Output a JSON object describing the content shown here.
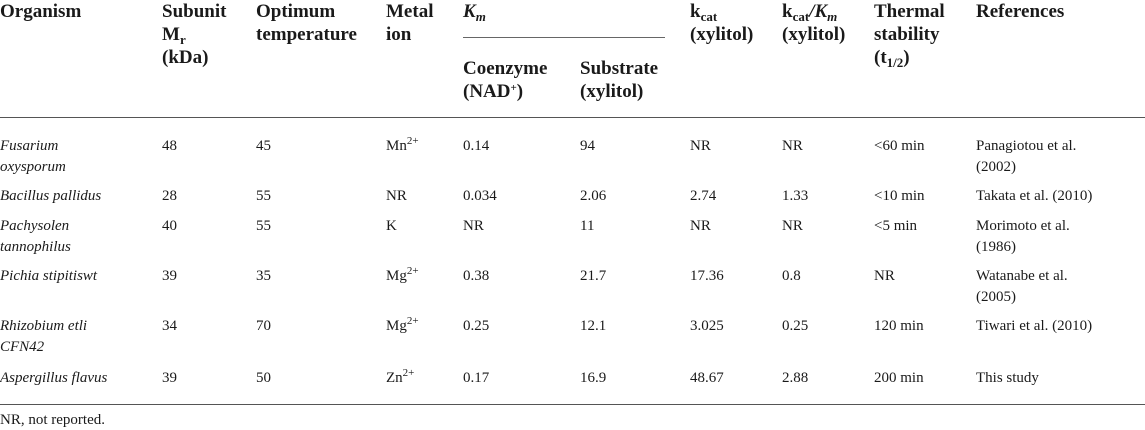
{
  "header": {
    "organism": "Organism",
    "subunit_1": "Subunit",
    "subunit_2": "M",
    "subunit_2_sub": "r",
    "subunit_3": "(kDa)",
    "optimum_1": "Optimum",
    "optimum_2": "temperature",
    "metal_1": "Metal",
    "metal_2": "ion",
    "km": "K",
    "km_sub": "m",
    "coenzyme_1": "Coenzyme",
    "coenzyme_2": "(NAD",
    "coenzyme_2_sup": "+",
    "coenzyme_2_end": ")",
    "substrate_1": "Substrate",
    "substrate_2": "(xylitol)",
    "kcat_1": "k",
    "kcat_1_sub": "cat",
    "kcat_2": "(xylitol)",
    "kcatkm_1a": "k",
    "kcatkm_1_sub": "cat",
    "kcatkm_1b": "/K",
    "kcatkm_1_sub2": "m",
    "kcatkm_2": "(xylitol)",
    "thermal_1": "Thermal",
    "thermal_2": "stability",
    "thermal_3a": "(t",
    "thermal_3_sub": "1/2",
    "thermal_3b": ")",
    "references": "References"
  },
  "rows": [
    {
      "organism": [
        "Fusarium",
        "oxysporum"
      ],
      "mr": "48",
      "temp": "45",
      "metal": "Mn",
      "metal_sup": "2+",
      "coenzyme": "0.14",
      "substrate": "94",
      "kcat": "NR",
      "kcatkm": "NR",
      "thermal": "<60 min",
      "ref": [
        "Panagiotou et al.",
        "(2002)"
      ]
    },
    {
      "organism": [
        "Bacillus pallidus"
      ],
      "mr": "28",
      "temp": "55",
      "metal": "NR",
      "metal_sup": "",
      "coenzyme": "0.034",
      "substrate": "2.06",
      "kcat": "2.74",
      "kcatkm": "1.33",
      "thermal": "<10 min",
      "ref": [
        "Takata et al. (2010)"
      ]
    },
    {
      "organism": [
        "Pachysolen",
        "tannophilus"
      ],
      "mr": "40",
      "temp": "55",
      "metal": "K",
      "metal_sup": "",
      "coenzyme": "NR",
      "substrate": "11",
      "kcat": "NR",
      "kcatkm": "NR",
      "thermal": "<5 min",
      "ref": [
        "Morimoto et al.",
        "(1986)"
      ]
    },
    {
      "organism": [
        "Pichia stipitiswt"
      ],
      "mr": "39",
      "temp": "35",
      "metal": "Mg",
      "metal_sup": "2+",
      "coenzyme": "0.38",
      "substrate": "21.7",
      "kcat": "17.36",
      "kcatkm": "0.8",
      "thermal": "NR",
      "ref": [
        "Watanabe et al.",
        "(2005)"
      ]
    },
    {
      "organism": [
        "Rhizobium etli",
        "CFN42"
      ],
      "mr": "34",
      "temp": "70",
      "metal": "Mg",
      "metal_sup": "2+",
      "coenzyme": "0.25",
      "substrate": "12.1",
      "kcat": "3.025",
      "kcatkm": "0.25",
      "thermal": "120 min",
      "ref": [
        "Tiwari et al. (2010)"
      ]
    },
    {
      "organism": [
        "Aspergillus flavus"
      ],
      "mr": "39",
      "temp": "50",
      "metal": "Zn",
      "metal_sup": "2+",
      "coenzyme": "0.17",
      "substrate": "16.9",
      "kcat": "48.67",
      "kcatkm": "2.88",
      "thermal": "200 min",
      "ref": [
        "This study"
      ]
    }
  ],
  "footnote": "NR, not reported."
}
